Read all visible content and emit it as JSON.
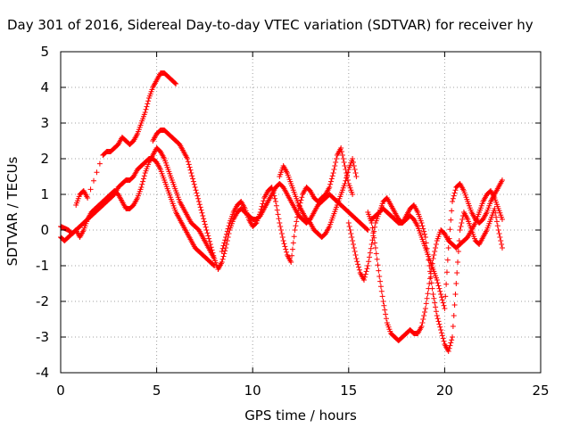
{
  "chart_data": {
    "type": "scatter",
    "title": "Day 301 of 2016, Sidereal Day-to-day VTEC variation (SDTVAR) for receiver hy",
    "xlabel": "GPS time / hours",
    "ylabel": "SDTVAR / TECUs",
    "xlim": [
      0,
      25
    ],
    "ylim": [
      -4,
      5
    ],
    "x_ticks": [
      "0",
      "5",
      "10",
      "15",
      "20",
      "25"
    ],
    "y_ticks": [
      "-4",
      "-3",
      "-2",
      "-1",
      "0",
      "1",
      "2",
      "3",
      "4",
      "5"
    ],
    "grid": true,
    "legend": "none",
    "marker": "+",
    "color": "#ff0000",
    "series": [
      {
        "x": [
          0.0,
          0.2,
          0.4,
          0.6,
          0.8,
          1.0,
          1.2,
          1.4,
          1.6,
          1.8,
          2.0,
          2.2,
          2.4,
          2.6,
          2.8,
          3.0,
          3.2,
          3.4,
          3.6,
          3.8,
          4.0,
          4.2,
          4.4,
          4.6,
          4.8,
          5.0,
          5.2,
          5.4,
          5.6,
          5.8,
          6.0,
          6.2,
          6.4,
          6.6,
          6.8,
          7.0,
          7.2,
          7.4,
          7.6,
          7.8,
          8.0
        ],
        "values": [
          0.1,
          0.05,
          0.0,
          -0.1,
          0.0,
          0.1,
          0.2,
          0.3,
          0.4,
          0.5,
          0.6,
          0.7,
          0.8,
          0.9,
          1.0,
          1.2,
          1.3,
          1.4,
          1.4,
          1.5,
          1.7,
          1.8,
          1.9,
          2.0,
          2.0,
          1.9,
          1.7,
          1.4,
          1.1,
          0.8,
          0.5,
          0.3,
          0.1,
          -0.1,
          -0.3,
          -0.5,
          -0.6,
          -0.7,
          -0.8,
          -0.9,
          -1.0
        ]
      },
      {
        "x": [
          0.0,
          0.2,
          0.4,
          0.6,
          0.8,
          1.0,
          1.2,
          1.4,
          1.6,
          1.8,
          2.0,
          2.2,
          2.4,
          2.6,
          2.8,
          3.0,
          3.2,
          3.4,
          3.6,
          3.8,
          4.0,
          4.2,
          4.4,
          4.6,
          4.8,
          5.0,
          5.2,
          5.4,
          5.6,
          5.8,
          6.0,
          6.2,
          6.4,
          6.6,
          6.8,
          7.0,
          7.2,
          7.4,
          7.6,
          7.8,
          8.0
        ],
        "values": [
          -0.2,
          -0.3,
          -0.2,
          -0.1,
          0.0,
          -0.2,
          0.0,
          0.3,
          0.5,
          0.6,
          0.7,
          0.8,
          0.9,
          1.0,
          1.1,
          1.0,
          0.8,
          0.6,
          0.6,
          0.7,
          0.9,
          1.2,
          1.6,
          1.9,
          2.1,
          2.3,
          2.2,
          2.0,
          1.7,
          1.4,
          1.1,
          0.8,
          0.6,
          0.4,
          0.2,
          0.1,
          0.0,
          -0.2,
          -0.4,
          -0.6,
          -0.8
        ]
      },
      {
        "x": [
          0.8,
          1.0,
          1.2,
          1.4,
          2.2,
          2.4,
          2.6,
          2.8,
          3.0,
          3.2,
          3.4,
          3.6,
          3.8,
          4.0,
          4.2,
          4.4,
          4.6,
          4.8,
          5.0,
          5.2,
          5.4,
          5.6,
          5.8,
          6.0
        ],
        "values": [
          0.7,
          1.0,
          1.1,
          0.9,
          2.1,
          2.2,
          2.2,
          2.3,
          2.4,
          2.6,
          2.5,
          2.4,
          2.5,
          2.7,
          3.0,
          3.3,
          3.7,
          4.0,
          4.2,
          4.4,
          4.4,
          4.3,
          4.2,
          4.1
        ]
      },
      {
        "x": [
          4.8,
          5.0,
          5.2,
          5.4,
          5.6,
          5.8,
          6.0,
          6.2,
          6.4,
          6.6,
          6.8,
          7.0,
          7.2,
          7.4,
          7.6,
          7.8,
          8.0,
          8.2
        ],
        "values": [
          2.5,
          2.7,
          2.8,
          2.8,
          2.7,
          2.6,
          2.5,
          2.4,
          2.2,
          2.0,
          1.6,
          1.2,
          0.8,
          0.4,
          0.0,
          -0.4,
          -0.8,
          -1.1
        ]
      },
      {
        "x": [
          8.2,
          8.4,
          8.6,
          8.8,
          9.0,
          9.2,
          9.4,
          9.6,
          9.8,
          10.0,
          10.2,
          10.4,
          10.6,
          10.8,
          11.0,
          11.2,
          11.4,
          11.6,
          11.8,
          12.0,
          12.2,
          12.4,
          12.6,
          12.8,
          13.0,
          13.2,
          13.4,
          13.6,
          13.8,
          14.0,
          14.2,
          14.4,
          14.6,
          14.8,
          15.0,
          15.2,
          15.4,
          15.6,
          15.8,
          16.0
        ],
        "values": [
          -1.1,
          -0.9,
          -0.5,
          0.0,
          0.3,
          0.5,
          0.6,
          0.5,
          0.4,
          0.3,
          0.3,
          0.4,
          0.6,
          0.8,
          1.0,
          1.2,
          1.3,
          1.2,
          1.0,
          0.8,
          0.6,
          0.4,
          0.3,
          0.2,
          0.3,
          0.5,
          0.7,
          0.8,
          0.9,
          1.0,
          0.9,
          0.8,
          0.7,
          0.6,
          0.5,
          0.4,
          0.3,
          0.2,
          0.1,
          0.0
        ]
      },
      {
        "x": [
          8.4,
          8.6,
          8.8,
          9.0,
          9.2,
          9.4,
          9.6,
          9.8,
          10.0,
          10.2,
          10.4,
          10.6,
          10.8,
          11.0,
          11.2,
          11.4,
          11.6,
          11.8,
          12.0,
          12.2,
          12.4,
          12.6,
          12.8,
          13.0,
          13.2,
          13.4,
          13.6,
          13.8,
          14.0,
          14.2,
          14.4,
          14.6,
          14.8,
          15.0,
          15.2
        ],
        "values": [
          -0.6,
          -0.2,
          0.2,
          0.5,
          0.7,
          0.8,
          0.6,
          0.3,
          0.1,
          0.2,
          0.5,
          0.9,
          1.1,
          1.2,
          0.8,
          0.2,
          -0.3,
          -0.7,
          -0.9,
          0.0,
          0.6,
          1.0,
          1.2,
          1.1,
          0.9,
          0.8,
          0.9,
          1.0,
          1.2,
          1.6,
          2.1,
          2.3,
          1.8,
          1.3,
          1.0
        ]
      },
      {
        "x": [
          11.4,
          11.6,
          11.8,
          12.0,
          12.2,
          12.4,
          12.6,
          12.8,
          13.0,
          13.2,
          13.4,
          13.6,
          13.8,
          14.0,
          14.2,
          14.4,
          14.6,
          14.8,
          15.0,
          15.2,
          15.4
        ],
        "values": [
          1.5,
          1.8,
          1.6,
          1.3,
          1.0,
          0.7,
          0.5,
          0.3,
          0.2,
          0.0,
          -0.1,
          -0.2,
          -0.1,
          0.1,
          0.4,
          0.7,
          1.0,
          1.3,
          1.7,
          2.0,
          1.5
        ]
      },
      {
        "x": [
          15.0,
          15.2,
          15.4,
          15.6,
          15.8,
          16.0,
          16.2,
          16.4,
          16.6,
          16.8,
          17.0,
          17.2,
          17.4,
          17.6,
          17.8,
          18.0,
          18.2,
          18.4,
          18.6,
          18.8,
          19.0,
          19.2,
          19.4,
          19.6,
          19.8,
          20.0,
          20.2,
          20.4,
          20.6,
          20.8,
          21.0,
          21.2,
          21.4,
          21.6,
          21.8,
          22.0,
          22.2,
          22.4,
          22.6,
          22.8,
          23.0
        ],
        "values": [
          0.2,
          -0.3,
          -0.8,
          -1.2,
          -1.4,
          -1.0,
          -0.4,
          0.2,
          0.5,
          0.6,
          0.5,
          0.4,
          0.3,
          0.2,
          0.2,
          0.3,
          0.4,
          0.3,
          0.1,
          -0.2,
          -0.5,
          -0.8,
          -1.1,
          -1.4,
          -1.8,
          -2.2,
          -0.5,
          0.8,
          1.2,
          1.3,
          1.1,
          0.8,
          0.5,
          0.3,
          0.2,
          0.3,
          0.5,
          0.8,
          1.0,
          1.2,
          1.4
        ]
      },
      {
        "x": [
          16.0,
          16.2,
          16.4,
          16.6,
          16.8,
          17.0,
          17.2,
          17.4,
          17.6,
          17.8,
          18.0,
          18.2,
          18.4,
          18.6,
          18.8,
          19.0,
          19.2,
          19.4,
          19.6,
          19.8,
          20.0,
          20.2,
          20.4,
          20.6,
          20.8,
          21.0,
          21.2,
          21.4,
          21.6,
          21.8,
          22.0,
          22.2,
          22.4,
          22.6,
          22.8,
          23.0
        ],
        "values": [
          0.5,
          0.2,
          -0.5,
          -1.3,
          -2.0,
          -2.6,
          -2.9,
          -3.0,
          -3.1,
          -3.0,
          -2.9,
          -2.8,
          -2.9,
          -2.9,
          -2.7,
          -2.2,
          -1.5,
          -0.8,
          -0.3,
          0.0,
          -0.1,
          -0.3,
          -0.4,
          -0.5,
          -0.4,
          -0.3,
          -0.2,
          0.0,
          0.2,
          0.5,
          0.8,
          1.0,
          1.1,
          0.9,
          0.6,
          0.3
        ]
      },
      {
        "x": [
          16.2,
          16.4,
          16.6,
          16.8,
          17.0,
          17.2,
          17.4,
          17.6,
          17.8,
          18.0,
          18.2,
          18.4,
          18.6,
          18.8,
          19.0,
          19.2,
          19.4,
          19.6,
          19.8,
          20.0,
          20.2,
          20.4,
          20.6,
          20.8,
          21.0,
          21.2,
          21.4,
          21.6,
          21.8,
          22.0,
          22.2,
          22.4,
          22.6,
          22.8,
          23.0
        ],
        "values": [
          0.3,
          0.4,
          0.5,
          0.8,
          0.9,
          0.7,
          0.5,
          0.3,
          0.2,
          0.4,
          0.6,
          0.7,
          0.5,
          0.2,
          -0.2,
          -1.0,
          -1.8,
          -2.4,
          -2.8,
          -3.2,
          -3.4,
          -3.0,
          -1.5,
          0.0,
          0.5,
          0.3,
          0.0,
          -0.3,
          -0.4,
          -0.2,
          0.0,
          0.3,
          0.6,
          0.0,
          -0.5
        ]
      }
    ]
  }
}
